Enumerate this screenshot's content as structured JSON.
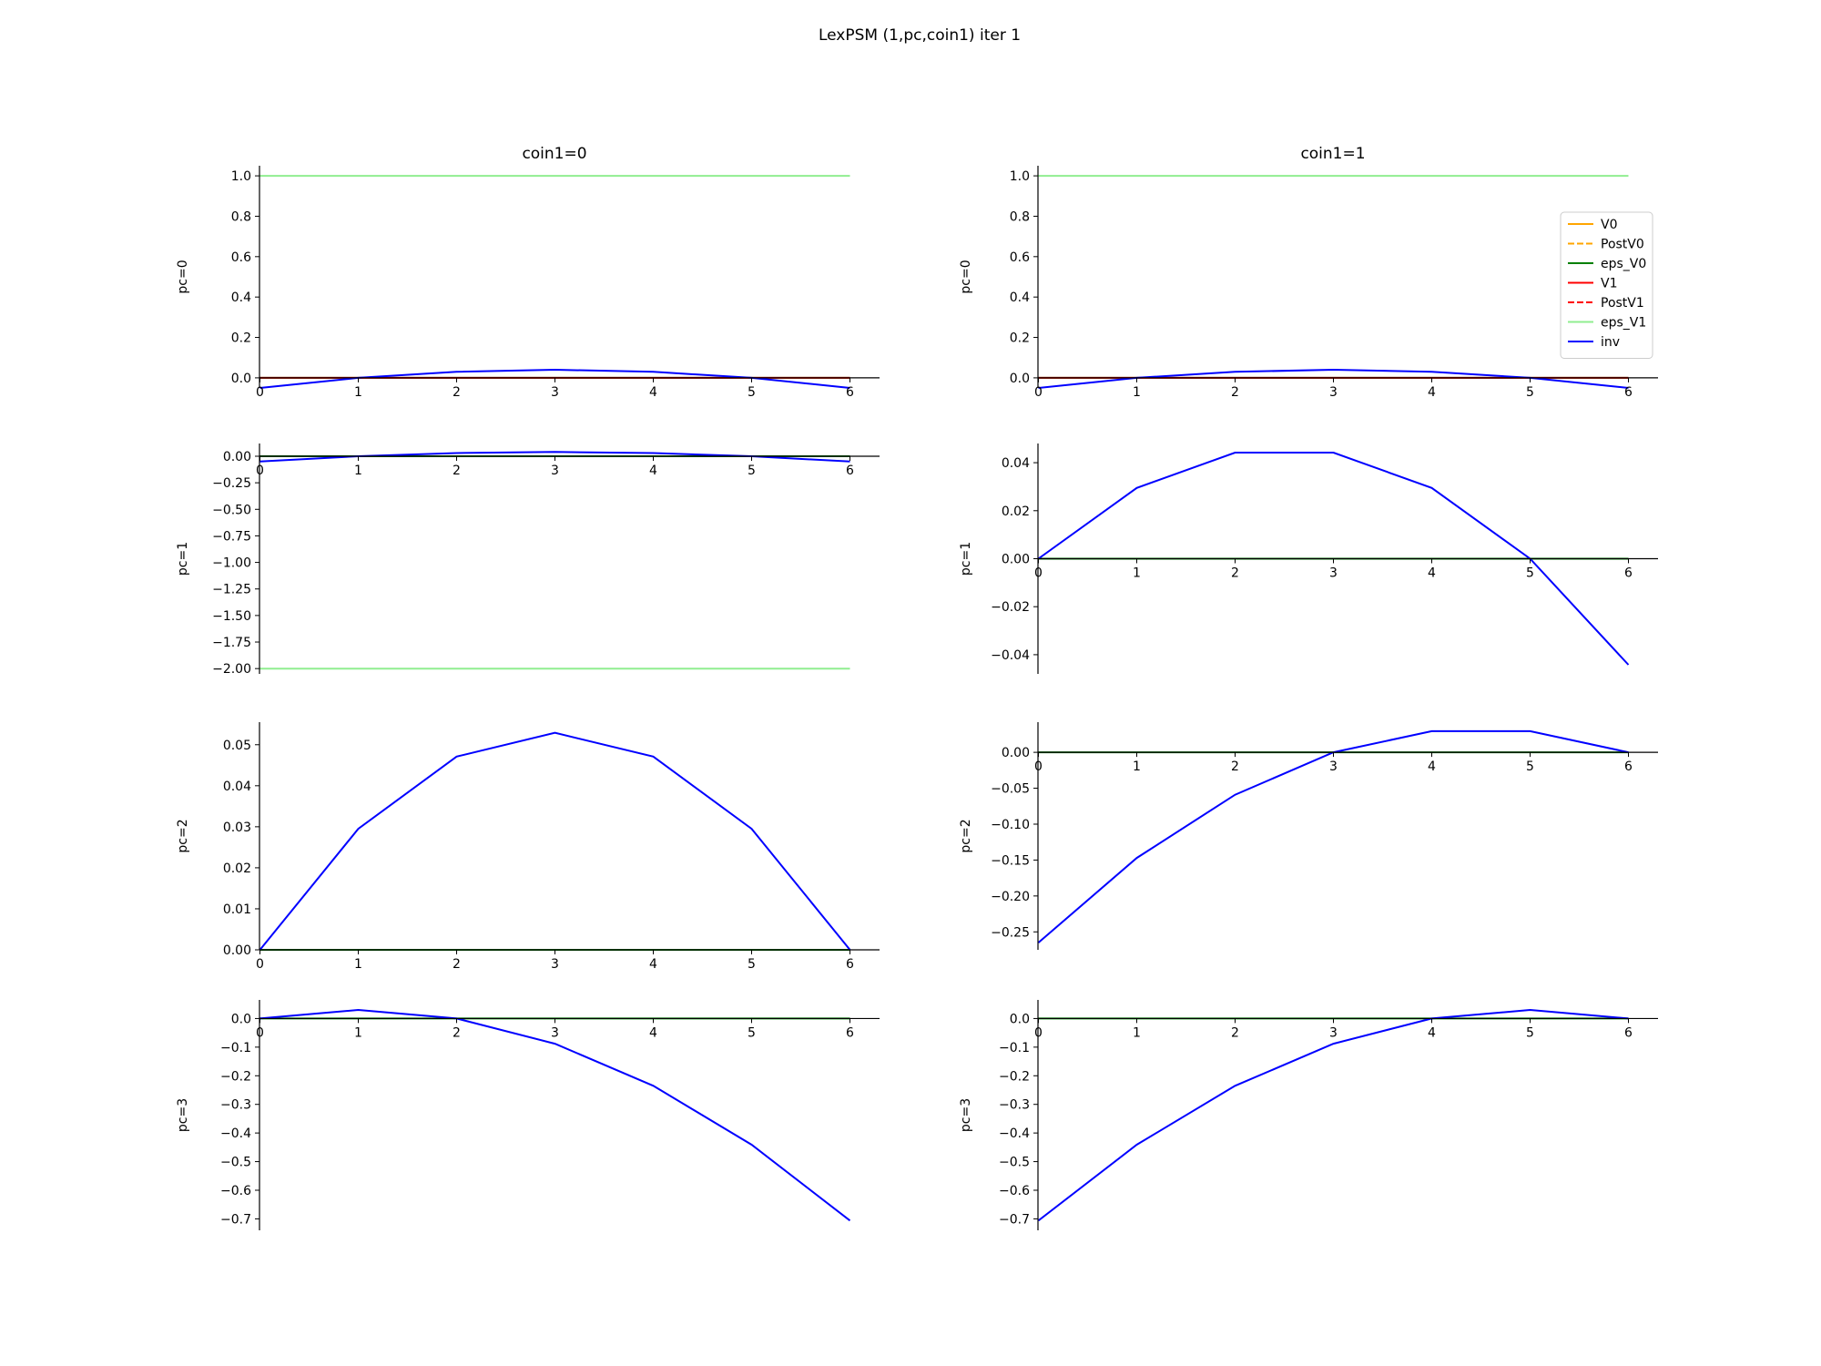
{
  "figure": {
    "title": "LexPSM (1,pc,coin1) iter 1",
    "column_titles": [
      "coin1=0",
      "coin1=1"
    ],
    "row_labels": [
      "pc=0",
      "pc=1",
      "pc=2",
      "pc=3"
    ]
  },
  "legend": {
    "location": "upper right of top-right panel",
    "items": [
      {
        "name": "V0",
        "color": "#ffa500",
        "dash": "solid"
      },
      {
        "name": "PostV0",
        "color": "#ffa500",
        "dash": "dashed"
      },
      {
        "name": "eps_V0",
        "color": "#008000",
        "dash": "solid"
      },
      {
        "name": "V1",
        "color": "#ff0000",
        "dash": "solid"
      },
      {
        "name": "PostV1",
        "color": "#ff0000",
        "dash": "dashed"
      },
      {
        "name": "eps_V1",
        "color": "#90ee90",
        "dash": "solid"
      },
      {
        "name": "inv",
        "color": "#0000ff",
        "dash": "solid"
      }
    ]
  },
  "chart_data": [
    {
      "type": "line",
      "panel": "pc=0, coin1=0",
      "row": 0,
      "col": 0,
      "ylabel": "pc=0",
      "title": "coin1=0",
      "x": [
        0,
        1,
        2,
        3,
        4,
        5,
        6
      ],
      "xticks": [
        "0",
        "1",
        "2",
        "3",
        "4",
        "5",
        "6"
      ],
      "ylim": [
        -0.05,
        1.05
      ],
      "yticks": [
        0.0,
        0.2,
        0.4,
        0.6,
        0.8,
        1.0
      ],
      "ytick_labels": [
        "0.0",
        "0.2",
        "0.4",
        "0.6",
        "0.8",
        "1.0"
      ],
      "series": [
        {
          "name": "eps_V1",
          "values": [
            1,
            1,
            1,
            1,
            1,
            1,
            1
          ]
        },
        {
          "name": "eps_V0",
          "values": [
            0,
            0,
            0,
            0,
            0,
            0,
            0
          ]
        },
        {
          "name": "V1",
          "values": [
            0,
            0,
            0,
            0,
            0,
            0,
            0
          ]
        },
        {
          "name": "inv",
          "values": [
            -0.05,
            0,
            0.03,
            0.04,
            0.03,
            0,
            -0.05
          ]
        }
      ]
    },
    {
      "type": "line",
      "panel": "pc=0, coin1=1",
      "row": 0,
      "col": 1,
      "ylabel": "pc=0",
      "title": "coin1=1",
      "x": [
        0,
        1,
        2,
        3,
        4,
        5,
        6
      ],
      "xticks": [
        "0",
        "1",
        "2",
        "3",
        "4",
        "5",
        "6"
      ],
      "ylim": [
        -0.05,
        1.05
      ],
      "yticks": [
        0.0,
        0.2,
        0.4,
        0.6,
        0.8,
        1.0
      ],
      "ytick_labels": [
        "0.0",
        "0.2",
        "0.4",
        "0.6",
        "0.8",
        "1.0"
      ],
      "series": [
        {
          "name": "eps_V1",
          "values": [
            1,
            1,
            1,
            1,
            1,
            1,
            1
          ]
        },
        {
          "name": "eps_V0",
          "values": [
            0,
            0,
            0,
            0,
            0,
            0,
            0
          ]
        },
        {
          "name": "V1",
          "values": [
            0,
            0,
            0,
            0,
            0,
            0,
            0
          ]
        },
        {
          "name": "inv",
          "values": [
            -0.05,
            0,
            0.03,
            0.04,
            0.03,
            0,
            -0.05
          ]
        }
      ]
    },
    {
      "type": "line",
      "panel": "pc=1, coin1=0",
      "row": 1,
      "col": 0,
      "ylabel": "pc=1",
      "x": [
        0,
        1,
        2,
        3,
        4,
        5,
        6
      ],
      "xticks": [
        "0",
        "1",
        "2",
        "3",
        "4",
        "5",
        "6"
      ],
      "ylim": [
        -2.05,
        0.12
      ],
      "yticks": [
        0.0,
        -0.25,
        -0.5,
        -0.75,
        -1.0,
        -1.25,
        -1.5,
        -1.75,
        -2.0
      ],
      "ytick_labels": [
        "0.00",
        "−0.25",
        "−0.50",
        "−0.75",
        "−1.00",
        "−1.25",
        "−1.50",
        "−1.75",
        "−2.00"
      ],
      "series": [
        {
          "name": "eps_V1",
          "values": [
            -2,
            -2,
            -2,
            -2,
            -2,
            -2,
            -2
          ]
        },
        {
          "name": "eps_V0",
          "values": [
            0,
            0,
            0,
            0,
            0,
            0,
            0
          ]
        },
        {
          "name": "inv",
          "values": [
            -0.05,
            0,
            0.03,
            0.04,
            0.03,
            0,
            -0.05
          ]
        }
      ]
    },
    {
      "type": "line",
      "panel": "pc=1, coin1=1",
      "row": 1,
      "col": 1,
      "ylabel": "pc=1",
      "x": [
        0,
        1,
        2,
        3,
        4,
        5,
        6
      ],
      "xticks": [
        "0",
        "1",
        "2",
        "3",
        "4",
        "5",
        "6"
      ],
      "ylim": [
        -0.048,
        0.048
      ],
      "yticks": [
        0.04,
        0.02,
        0.0,
        -0.02,
        -0.04
      ],
      "ytick_labels": [
        "0.04",
        "0.02",
        "0.00",
        "−0.02",
        "−0.04"
      ],
      "series": [
        {
          "name": "eps_V0",
          "values": [
            0,
            0,
            0,
            0,
            0,
            0,
            0
          ]
        },
        {
          "name": "inv",
          "values": [
            0,
            0.0295,
            0.0442,
            0.0442,
            0.0295,
            0,
            -0.0442
          ]
        }
      ]
    },
    {
      "type": "line",
      "panel": "pc=2, coin1=0",
      "row": 2,
      "col": 0,
      "ylabel": "pc=2",
      "x": [
        0,
        1,
        2,
        3,
        4,
        5,
        6
      ],
      "xticks": [
        "0",
        "1",
        "2",
        "3",
        "4",
        "5",
        "6"
      ],
      "ylim": [
        0.0,
        0.0555
      ],
      "yticks": [
        0.0,
        0.01,
        0.02,
        0.03,
        0.04,
        0.05
      ],
      "ytick_labels": [
        "0.00",
        "0.01",
        "0.02",
        "0.03",
        "0.04",
        "0.05"
      ],
      "series": [
        {
          "name": "eps_V0",
          "values": [
            0,
            0,
            0,
            0,
            0,
            0,
            0
          ]
        },
        {
          "name": "inv",
          "values": [
            0,
            0.0295,
            0.0471,
            0.0529,
            0.0471,
            0.0295,
            0
          ]
        }
      ]
    },
    {
      "type": "line",
      "panel": "pc=2, coin1=1",
      "row": 2,
      "col": 1,
      "ylabel": "pc=2",
      "x": [
        0,
        1,
        2,
        3,
        4,
        5,
        6
      ],
      "xticks": [
        "0",
        "1",
        "2",
        "3",
        "4",
        "5",
        "6"
      ],
      "ylim": [
        -0.275,
        0.042
      ],
      "yticks": [
        0.0,
        -0.05,
        -0.1,
        -0.15,
        -0.2,
        -0.25
      ],
      "ytick_labels": [
        "0.00",
        "−0.05",
        "−0.10",
        "−0.15",
        "−0.20",
        "−0.25"
      ],
      "series": [
        {
          "name": "eps_V0",
          "values": [
            0,
            0,
            0,
            0,
            0,
            0,
            0
          ]
        },
        {
          "name": "inv",
          "values": [
            -0.265,
            -0.147,
            -0.059,
            0,
            0.0295,
            0.0295,
            0
          ]
        }
      ]
    },
    {
      "type": "line",
      "panel": "pc=3, coin1=0",
      "row": 3,
      "col": 0,
      "ylabel": "pc=3",
      "x": [
        0,
        1,
        2,
        3,
        4,
        5,
        6
      ],
      "xticks": [
        "0",
        "1",
        "2",
        "3",
        "4",
        "5",
        "6"
      ],
      "ylim": [
        -0.74,
        0.065
      ],
      "yticks": [
        0.0,
        -0.1,
        -0.2,
        -0.3,
        -0.4,
        -0.5,
        -0.6,
        -0.7
      ],
      "ytick_labels": [
        "0.0",
        "−0.1",
        "−0.2",
        "−0.3",
        "−0.4",
        "−0.5",
        "−0.6",
        "−0.7"
      ],
      "series": [
        {
          "name": "eps_V0",
          "values": [
            0,
            0,
            0,
            0,
            0,
            0,
            0
          ]
        },
        {
          "name": "inv",
          "values": [
            0,
            0.03,
            0,
            -0.088,
            -0.235,
            -0.441,
            -0.706
          ]
        }
      ]
    },
    {
      "type": "line",
      "panel": "pc=3, coin1=1",
      "row": 3,
      "col": 1,
      "ylabel": "pc=3",
      "x": [
        0,
        1,
        2,
        3,
        4,
        5,
        6
      ],
      "xticks": [
        "0",
        "1",
        "2",
        "3",
        "4",
        "5",
        "6"
      ],
      "ylim": [
        -0.74,
        0.065
      ],
      "yticks": [
        0.0,
        -0.1,
        -0.2,
        -0.3,
        -0.4,
        -0.5,
        -0.6,
        -0.7
      ],
      "ytick_labels": [
        "0.0",
        "−0.1",
        "−0.2",
        "−0.3",
        "−0.4",
        "−0.5",
        "−0.6",
        "−0.7"
      ],
      "series": [
        {
          "name": "eps_V0",
          "values": [
            0,
            0,
            0,
            0,
            0,
            0,
            0
          ]
        },
        {
          "name": "inv",
          "values": [
            -0.706,
            -0.441,
            -0.235,
            -0.088,
            0,
            0.03,
            0
          ]
        }
      ]
    }
  ]
}
